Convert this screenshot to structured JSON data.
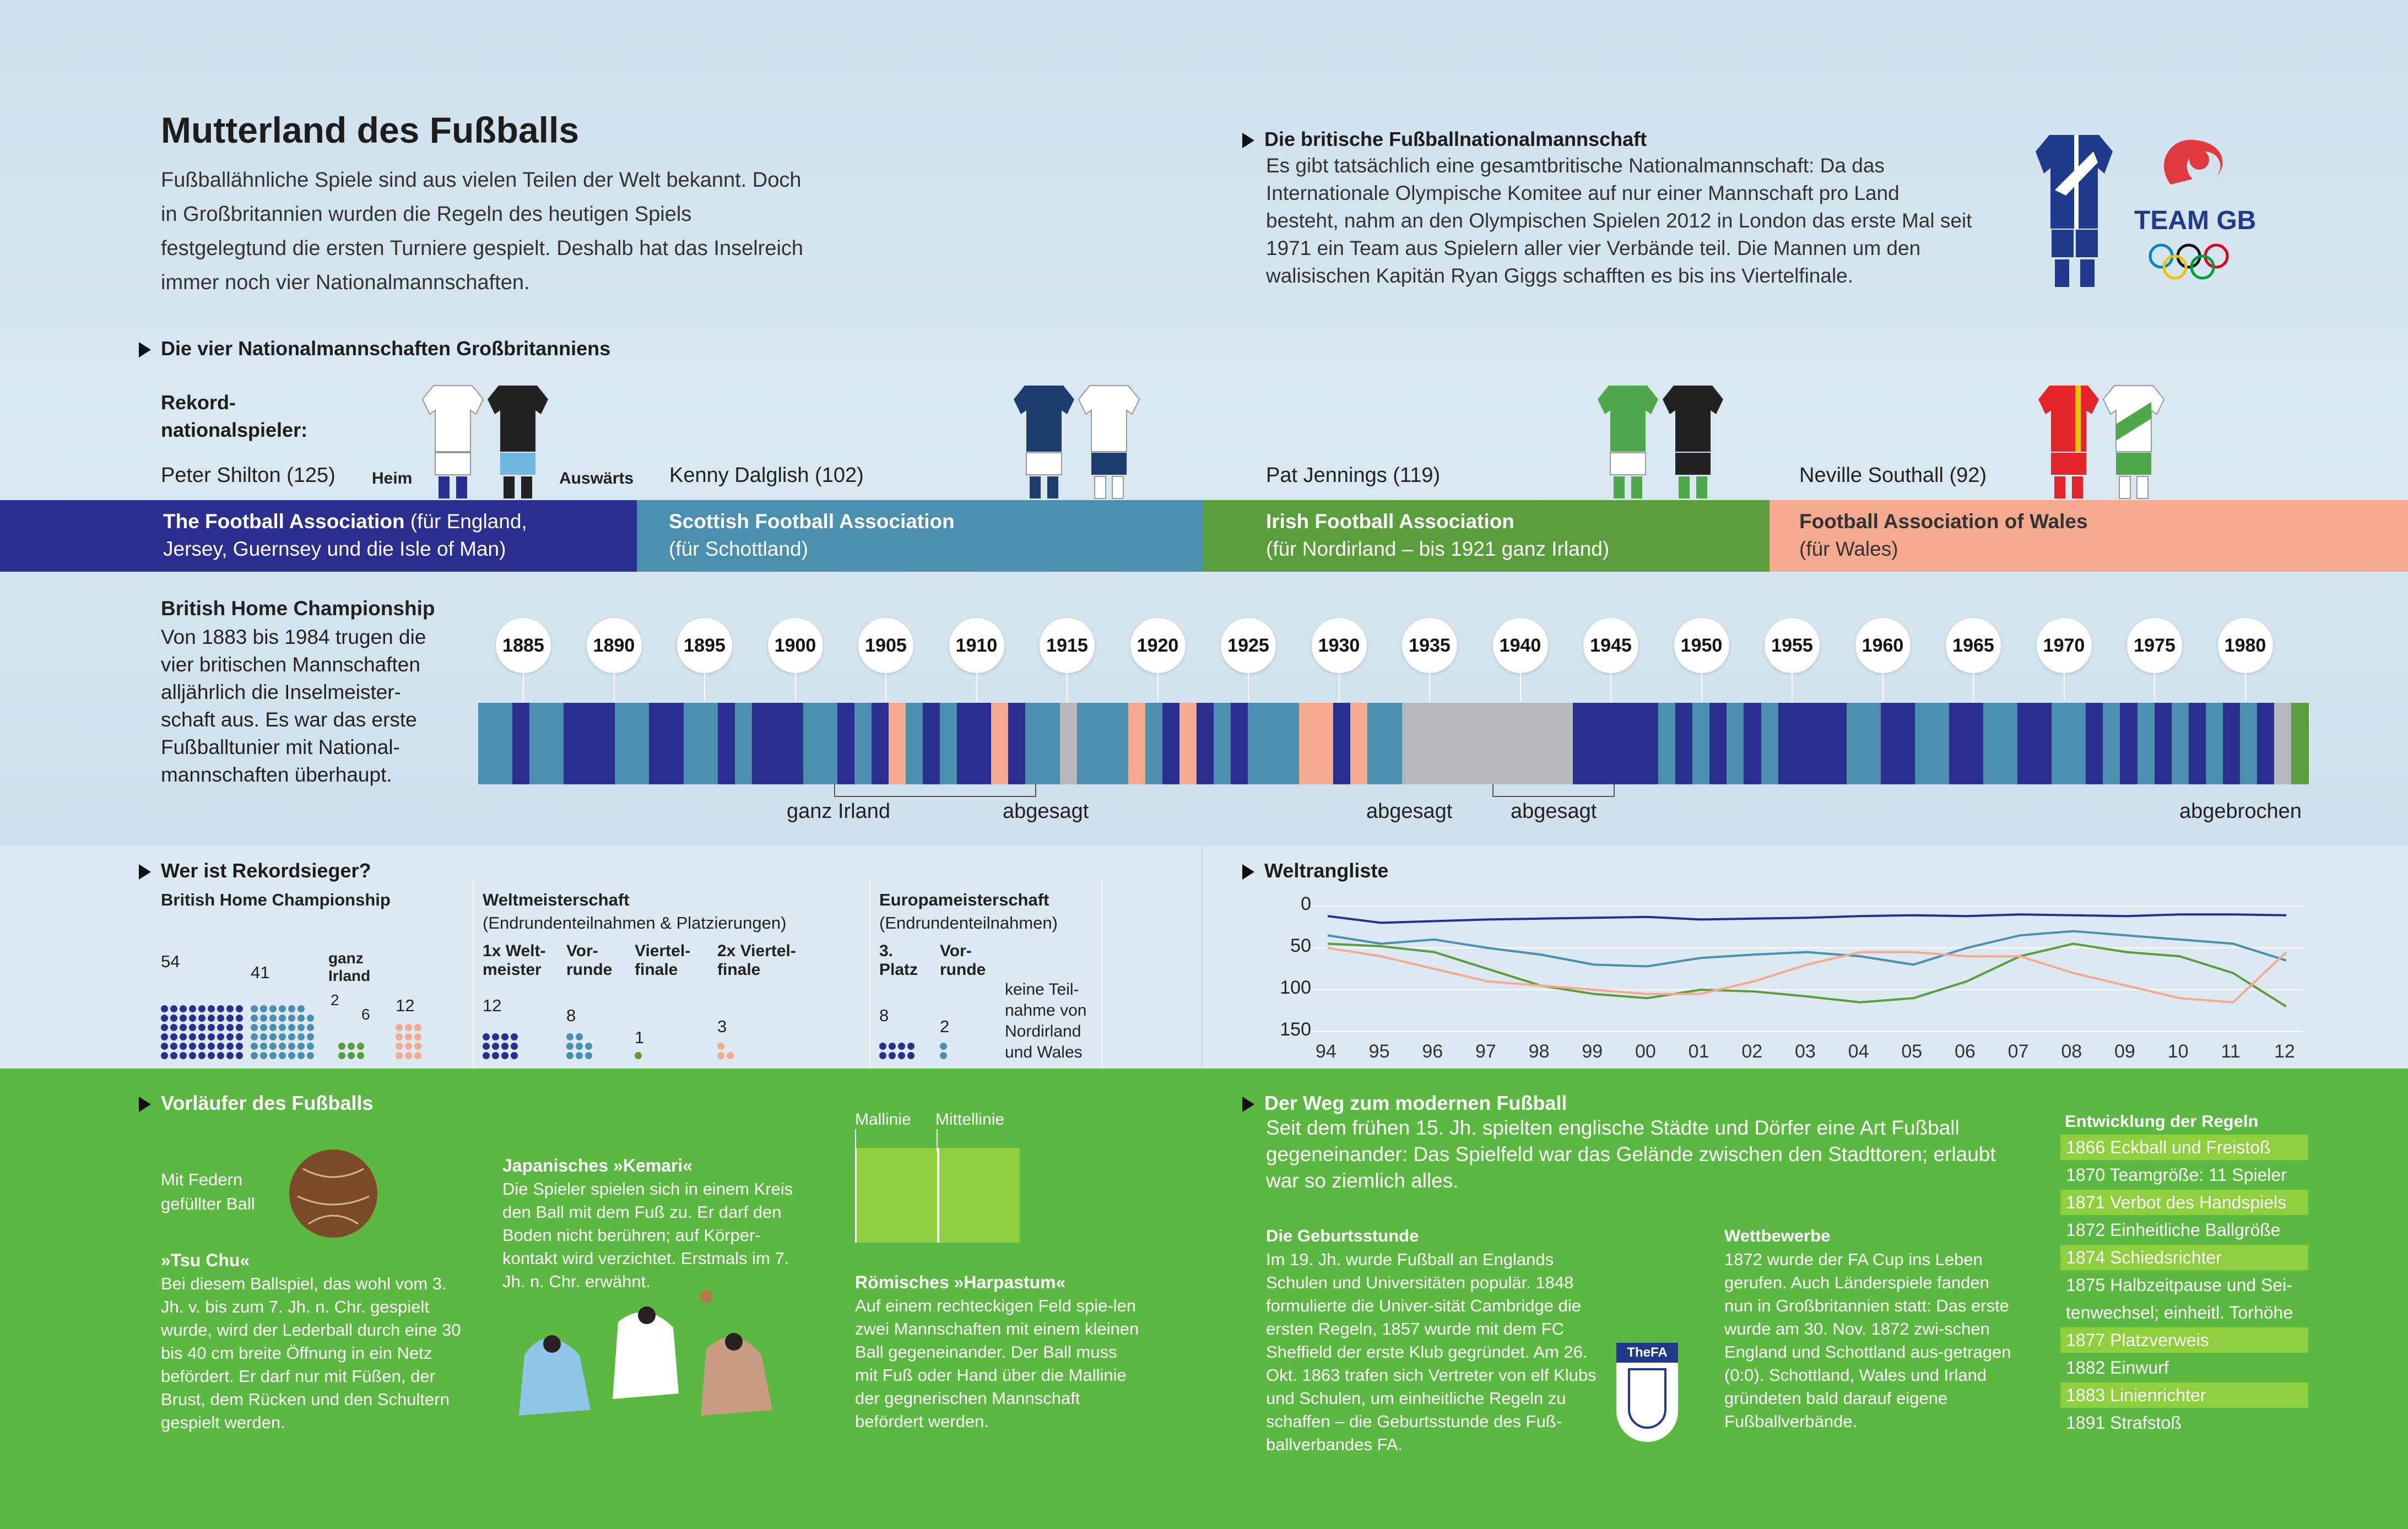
{
  "header": {
    "title": "Mutterland des Fußballs",
    "intro": "Fußballähnliche Spiele sind aus vielen Teilen der Welt bekannt. Doch in Großbritannien wurden die Regeln des heutigen Spiels festgelegtund die ersten Turniere gespielt. Deshalb hat das Inselreich immer noch vier Nationalmannschaften."
  },
  "teamgb": {
    "heading": "Die britische Fußballnationalmannschaft",
    "text": "Es gibt tatsächlich eine gesamtbritische Nationalmannschaft: Da das Internationale Olympische Komitee auf nur einer Mannschaft pro Land besteht, nahm an den Olympischen Spielen 2012 in London das erste Mal seit 1971 ein Team aus Spielern aller vier Verbände teil. Die Mannen um den walisischen Kapitän Ryan Giggs schafften es bis ins Viertelfinale.",
    "logo_text": "TEAM GB"
  },
  "four_teams": {
    "heading": "Die vier Nationalmannschaften Großbritanniens",
    "record_label_1": "Rekord-",
    "record_label_2": "nationalspieler:",
    "home_label": "Heim",
    "away_label": "Auswärts",
    "players": [
      "Peter Shilton (125)",
      "Kenny Dalglish (102)",
      "Pat Jennings (119)",
      "Neville Southall (92)"
    ],
    "associations": [
      {
        "name": "The Football Association",
        "detail_inline": " (für England,",
        "detail": "Jersey, Guernsey und die Isle of Man)",
        "color": "#2b2e8e"
      },
      {
        "name": "Scottish Football Association",
        "detail_inline": "",
        "detail": "(für Schottland)",
        "color": "#4a8fad"
      },
      {
        "name": "Irish Football Association",
        "detail_inline": "",
        "detail": "(für Nordirland – bis 1921 ganz Irland)",
        "color": "#5a9e3c"
      },
      {
        "name": "Football Association of Wales",
        "detail_inline": "",
        "detail": "(für Wales)",
        "color": "#f5a98f"
      }
    ]
  },
  "championship": {
    "heading": "British Home Championship",
    "text": "Von 1883 bis 1984 trugen die vier britischen Mannschaften alljährlich die Inselmeister-schaft aus. Es war das erste Fußballtunier mit National-mannschaften überhaupt.",
    "years": [
      "1885",
      "1890",
      "1895",
      "1900",
      "1905",
      "1910",
      "1915",
      "1920",
      "1925",
      "1930",
      "1935",
      "1940",
      "1945",
      "1950",
      "1955",
      "1960",
      "1965",
      "1970",
      "1975",
      "1980"
    ],
    "notes": [
      "ganz Irland",
      "abgesagt",
      "abgesagt",
      "abgesagt",
      "abgebrochen"
    ]
  },
  "winners": {
    "heading": "Wer ist Rekordsieger?",
    "bhc_title": "British Home Championship",
    "bhc_values": [
      "54",
      "41",
      "ganz",
      "Irland",
      "2",
      "6",
      "12"
    ],
    "wm_title": "Weltmeisterschaft",
    "wm_sub": "(Endrundenteilnahmen & Platzierungen)",
    "wm_cols": [
      {
        "label": "1x Welt-\nmeister",
        "value": "12"
      },
      {
        "label": "Vor-\nrunde",
        "value": "8"
      },
      {
        "label": "Viertel-\nfinale",
        "value": "1"
      },
      {
        "label": "2x Viertel-\nfinale",
        "value": "3"
      }
    ],
    "em_title": "Europameisterschaft",
    "em_sub": "(Endrundenteilnahmen)",
    "em_cols": [
      {
        "label": "3.\nPlatz",
        "value": "8"
      },
      {
        "label": "Vor-\nrunde",
        "value": "2"
      }
    ],
    "em_note": "keine Teil-\nnahme von\nNordirland\nund Wales"
  },
  "ranking": {
    "heading": "Weltrangliste",
    "y_ticks": [
      "0",
      "50",
      "100",
      "150"
    ],
    "x_ticks": [
      "94",
      "95",
      "96",
      "97",
      "98",
      "99",
      "00",
      "01",
      "02",
      "03",
      "04",
      "05",
      "06",
      "07",
      "08",
      "09",
      "10",
      "11",
      "12"
    ]
  },
  "chart_data": {
    "type": "line",
    "title": "Weltrangliste",
    "x": [
      "94",
      "95",
      "96",
      "97",
      "98",
      "99",
      "00",
      "01",
      "02",
      "03",
      "04",
      "05",
      "06",
      "07",
      "08",
      "09",
      "10",
      "11",
      "12"
    ],
    "ylim": [
      0,
      150
    ],
    "y_inverted": true,
    "series": [
      {
        "color": "#2b2e8e",
        "values": [
          12,
          20,
          18,
          16,
          15,
          14,
          13,
          16,
          15,
          14,
          12,
          11,
          12,
          10,
          11,
          12,
          10,
          10,
          11
        ]
      },
      {
        "color": "#4a8fad",
        "values": [
          35,
          45,
          40,
          50,
          58,
          70,
          72,
          62,
          58,
          55,
          60,
          70,
          50,
          35,
          30,
          35,
          40,
          45,
          65
        ]
      },
      {
        "color": "#5a9e3c",
        "values": [
          45,
          48,
          55,
          75,
          95,
          105,
          110,
          100,
          102,
          108,
          115,
          110,
          90,
          60,
          45,
          55,
          60,
          80,
          120
        ]
      },
      {
        "color": "#f5a98f",
        "values": [
          50,
          60,
          75,
          90,
          95,
          100,
          105,
          105,
          90,
          70,
          55,
          55,
          60,
          60,
          80,
          95,
          110,
          115,
          55
        ]
      }
    ]
  },
  "precursors": {
    "heading": "Vorläufer des Fußballs",
    "ball_caption": "Mit Federn\ngefüllter Ball",
    "tsuchu_title": "»Tsu Chu«",
    "tsuchu_text": "Bei diesem Ballspiel, das wohl vom 3. Jh. v. bis zum 7. Jh. n. Chr. gespielt wurde, wird der Lederball durch eine 30 bis 40 cm breite Öffnung in ein Netz befördert. Er darf nur mit Füßen, der Brust, dem Rücken und den Schultern gespielt werden.",
    "kemari_title": "Japanisches »Kemari«",
    "kemari_text": "Die Spieler spielen sich in einem Kreis den Ball mit dem Fuß zu. Er darf den Boden nicht berühren; auf Körper-kontakt wird verzichtet. Erstmals im 7. Jh. n. Chr. erwähnt.",
    "field_labels": [
      "Mallinie",
      "Mittellinie"
    ],
    "harpastum_title": "Römisches »Harpastum«",
    "harpastum_text": "Auf einem rechteckigen Feld spie-len zwei Mannschaften mit einem kleinen Ball gegeneinander. Der Ball muss mit Fuß oder Hand über die Mallinie der gegnerischen Mannschaft befördert werden."
  },
  "modern": {
    "heading": "Der Weg zum modernen Fußball",
    "intro": "Seit dem frühen 15. Jh. spielten englische Städte und Dörfer eine Art Fußball gegeneinander: Das Spielfeld war das Gelände zwischen den Stadttoren; erlaubt war so ziemlich alles.",
    "birth_title": "Die Geburtsstunde",
    "birth_text": "Im 19. Jh. wurde Fußball an Englands Schulen und Universitäten populär. 1848 formulierte die Univer-sität Cambridge die ersten Regeln, 1857 wurde mit dem FC Sheffield der erste Klub gegründet. Am 26. Okt. 1863 trafen sich Vertreter von elf Klubs und Schulen, um einheitliche Regeln zu schaffen – die Geburtsstunde des Fuß-ballverbandes FA.",
    "fa_logo": "TheFA",
    "comp_title": "Wettbewerbe",
    "comp_text": "1872 wurde der FA Cup ins Leben gerufen. Auch Länderspiele fanden nun in Großbritannien statt: Das erste wurde am 30. Nov. 1872 zwi-schen England und Schottland aus-getragen (0:0). Schottland, Wales und Irland gründeten bald darauf eigene Fußballverbände.",
    "rules_title": "Entwicklung der Regeln",
    "rules": [
      "1866 Eckball und Freistoß",
      "1870 Teamgröße: 11 Spieler",
      "1871 Verbot des Handspiels",
      "1872 Einheitliche Ballgröße",
      "1874 Schiedsrichter",
      "1875 Halbzeitpause und Sei-",
      "tenwechsel; einheitl. Torhöhe",
      "1877 Platzverweis",
      "1882 Einwurf",
      "1883 Linienrichter",
      "1891 Strafstoß"
    ]
  }
}
